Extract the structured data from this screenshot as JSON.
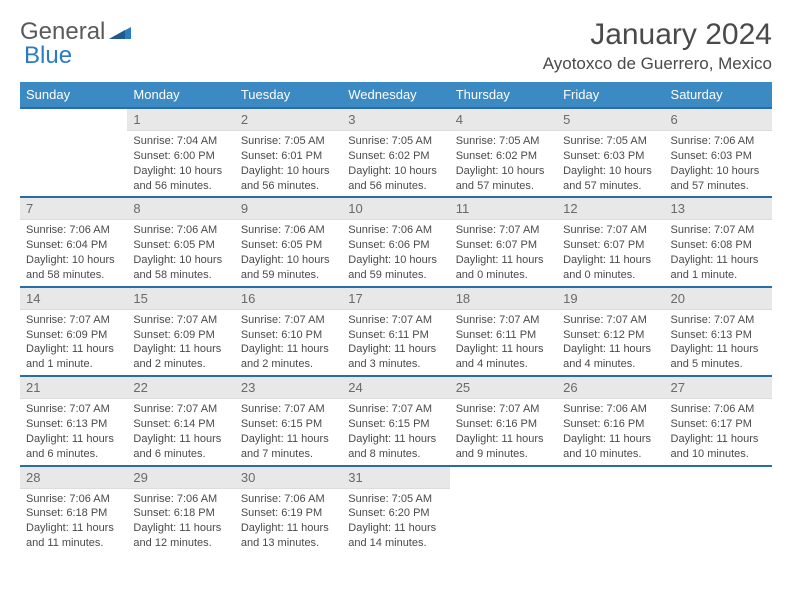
{
  "brand": {
    "part1": "General",
    "part2": "Blue"
  },
  "title": "January 2024",
  "location": "Ayotoxco de Guerrero, Mexico",
  "colors": {
    "header_bg": "#3b8ac4",
    "header_text": "#ffffff",
    "week_border": "#2a6ca8",
    "daynum_bg": "#e8e8e8",
    "daynum_text": "#6a6a6a",
    "body_text": "#4a4a4a",
    "brand_gray": "#5a5a5a",
    "brand_blue": "#2a7bc4",
    "background": "#ffffff"
  },
  "typography": {
    "title_fontsize": 30,
    "location_fontsize": 17,
    "dayheader_fontsize": 13,
    "daynum_fontsize": 13,
    "dayinfo_fontsize": 11
  },
  "day_headers": [
    "Sunday",
    "Monday",
    "Tuesday",
    "Wednesday",
    "Thursday",
    "Friday",
    "Saturday"
  ],
  "weeks": [
    [
      {
        "empty": true
      },
      {
        "num": "1",
        "sunrise": "Sunrise: 7:04 AM",
        "sunset": "Sunset: 6:00 PM",
        "daylight1": "Daylight: 10 hours",
        "daylight2": "and 56 minutes."
      },
      {
        "num": "2",
        "sunrise": "Sunrise: 7:05 AM",
        "sunset": "Sunset: 6:01 PM",
        "daylight1": "Daylight: 10 hours",
        "daylight2": "and 56 minutes."
      },
      {
        "num": "3",
        "sunrise": "Sunrise: 7:05 AM",
        "sunset": "Sunset: 6:02 PM",
        "daylight1": "Daylight: 10 hours",
        "daylight2": "and 56 minutes."
      },
      {
        "num": "4",
        "sunrise": "Sunrise: 7:05 AM",
        "sunset": "Sunset: 6:02 PM",
        "daylight1": "Daylight: 10 hours",
        "daylight2": "and 57 minutes."
      },
      {
        "num": "5",
        "sunrise": "Sunrise: 7:05 AM",
        "sunset": "Sunset: 6:03 PM",
        "daylight1": "Daylight: 10 hours",
        "daylight2": "and 57 minutes."
      },
      {
        "num": "6",
        "sunrise": "Sunrise: 7:06 AM",
        "sunset": "Sunset: 6:03 PM",
        "daylight1": "Daylight: 10 hours",
        "daylight2": "and 57 minutes."
      }
    ],
    [
      {
        "num": "7",
        "sunrise": "Sunrise: 7:06 AM",
        "sunset": "Sunset: 6:04 PM",
        "daylight1": "Daylight: 10 hours",
        "daylight2": "and 58 minutes."
      },
      {
        "num": "8",
        "sunrise": "Sunrise: 7:06 AM",
        "sunset": "Sunset: 6:05 PM",
        "daylight1": "Daylight: 10 hours",
        "daylight2": "and 58 minutes."
      },
      {
        "num": "9",
        "sunrise": "Sunrise: 7:06 AM",
        "sunset": "Sunset: 6:05 PM",
        "daylight1": "Daylight: 10 hours",
        "daylight2": "and 59 minutes."
      },
      {
        "num": "10",
        "sunrise": "Sunrise: 7:06 AM",
        "sunset": "Sunset: 6:06 PM",
        "daylight1": "Daylight: 10 hours",
        "daylight2": "and 59 minutes."
      },
      {
        "num": "11",
        "sunrise": "Sunrise: 7:07 AM",
        "sunset": "Sunset: 6:07 PM",
        "daylight1": "Daylight: 11 hours",
        "daylight2": "and 0 minutes."
      },
      {
        "num": "12",
        "sunrise": "Sunrise: 7:07 AM",
        "sunset": "Sunset: 6:07 PM",
        "daylight1": "Daylight: 11 hours",
        "daylight2": "and 0 minutes."
      },
      {
        "num": "13",
        "sunrise": "Sunrise: 7:07 AM",
        "sunset": "Sunset: 6:08 PM",
        "daylight1": "Daylight: 11 hours",
        "daylight2": "and 1 minute."
      }
    ],
    [
      {
        "num": "14",
        "sunrise": "Sunrise: 7:07 AM",
        "sunset": "Sunset: 6:09 PM",
        "daylight1": "Daylight: 11 hours",
        "daylight2": "and 1 minute."
      },
      {
        "num": "15",
        "sunrise": "Sunrise: 7:07 AM",
        "sunset": "Sunset: 6:09 PM",
        "daylight1": "Daylight: 11 hours",
        "daylight2": "and 2 minutes."
      },
      {
        "num": "16",
        "sunrise": "Sunrise: 7:07 AM",
        "sunset": "Sunset: 6:10 PM",
        "daylight1": "Daylight: 11 hours",
        "daylight2": "and 2 minutes."
      },
      {
        "num": "17",
        "sunrise": "Sunrise: 7:07 AM",
        "sunset": "Sunset: 6:11 PM",
        "daylight1": "Daylight: 11 hours",
        "daylight2": "and 3 minutes."
      },
      {
        "num": "18",
        "sunrise": "Sunrise: 7:07 AM",
        "sunset": "Sunset: 6:11 PM",
        "daylight1": "Daylight: 11 hours",
        "daylight2": "and 4 minutes."
      },
      {
        "num": "19",
        "sunrise": "Sunrise: 7:07 AM",
        "sunset": "Sunset: 6:12 PM",
        "daylight1": "Daylight: 11 hours",
        "daylight2": "and 4 minutes."
      },
      {
        "num": "20",
        "sunrise": "Sunrise: 7:07 AM",
        "sunset": "Sunset: 6:13 PM",
        "daylight1": "Daylight: 11 hours",
        "daylight2": "and 5 minutes."
      }
    ],
    [
      {
        "num": "21",
        "sunrise": "Sunrise: 7:07 AM",
        "sunset": "Sunset: 6:13 PM",
        "daylight1": "Daylight: 11 hours",
        "daylight2": "and 6 minutes."
      },
      {
        "num": "22",
        "sunrise": "Sunrise: 7:07 AM",
        "sunset": "Sunset: 6:14 PM",
        "daylight1": "Daylight: 11 hours",
        "daylight2": "and 6 minutes."
      },
      {
        "num": "23",
        "sunrise": "Sunrise: 7:07 AM",
        "sunset": "Sunset: 6:15 PM",
        "daylight1": "Daylight: 11 hours",
        "daylight2": "and 7 minutes."
      },
      {
        "num": "24",
        "sunrise": "Sunrise: 7:07 AM",
        "sunset": "Sunset: 6:15 PM",
        "daylight1": "Daylight: 11 hours",
        "daylight2": "and 8 minutes."
      },
      {
        "num": "25",
        "sunrise": "Sunrise: 7:07 AM",
        "sunset": "Sunset: 6:16 PM",
        "daylight1": "Daylight: 11 hours",
        "daylight2": "and 9 minutes."
      },
      {
        "num": "26",
        "sunrise": "Sunrise: 7:06 AM",
        "sunset": "Sunset: 6:16 PM",
        "daylight1": "Daylight: 11 hours",
        "daylight2": "and 10 minutes."
      },
      {
        "num": "27",
        "sunrise": "Sunrise: 7:06 AM",
        "sunset": "Sunset: 6:17 PM",
        "daylight1": "Daylight: 11 hours",
        "daylight2": "and 10 minutes."
      }
    ],
    [
      {
        "num": "28",
        "sunrise": "Sunrise: 7:06 AM",
        "sunset": "Sunset: 6:18 PM",
        "daylight1": "Daylight: 11 hours",
        "daylight2": "and 11 minutes."
      },
      {
        "num": "29",
        "sunrise": "Sunrise: 7:06 AM",
        "sunset": "Sunset: 6:18 PM",
        "daylight1": "Daylight: 11 hours",
        "daylight2": "and 12 minutes."
      },
      {
        "num": "30",
        "sunrise": "Sunrise: 7:06 AM",
        "sunset": "Sunset: 6:19 PM",
        "daylight1": "Daylight: 11 hours",
        "daylight2": "and 13 minutes."
      },
      {
        "num": "31",
        "sunrise": "Sunrise: 7:05 AM",
        "sunset": "Sunset: 6:20 PM",
        "daylight1": "Daylight: 11 hours",
        "daylight2": "and 14 minutes."
      },
      {
        "empty": true
      },
      {
        "empty": true
      },
      {
        "empty": true
      }
    ]
  ]
}
